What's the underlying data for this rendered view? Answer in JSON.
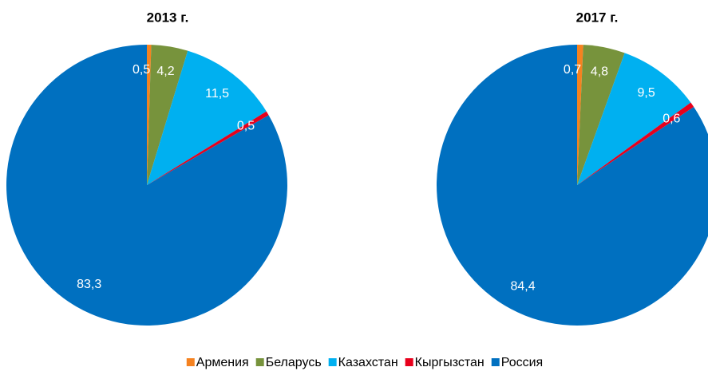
{
  "chart_data": [
    {
      "type": "pie",
      "title": "2013 г.",
      "categories": [
        "Армения",
        "Беларусь",
        "Казахстан",
        "Кыргызстан",
        "Россия"
      ],
      "values": [
        0.5,
        4.2,
        11.5,
        0.5,
        83.3
      ],
      "value_labels": [
        "0,5",
        "4,2",
        "11,5",
        "0,5",
        "83,3"
      ],
      "colors": [
        "#f58220",
        "#77933c",
        "#00b0f0",
        "#e8001c",
        "#0070c0"
      ]
    },
    {
      "type": "pie",
      "title": "2017 г.",
      "categories": [
        "Армения",
        "Беларусь",
        "Казахстан",
        "Кыргызстан",
        "Россия"
      ],
      "values": [
        0.7,
        4.8,
        9.5,
        0.6,
        84.4
      ],
      "value_labels": [
        "0,7",
        "4,8",
        "9,5",
        "0,6",
        "84,4"
      ],
      "colors": [
        "#f58220",
        "#77933c",
        "#00b0f0",
        "#e8001c",
        "#0070c0"
      ]
    }
  ]
}
